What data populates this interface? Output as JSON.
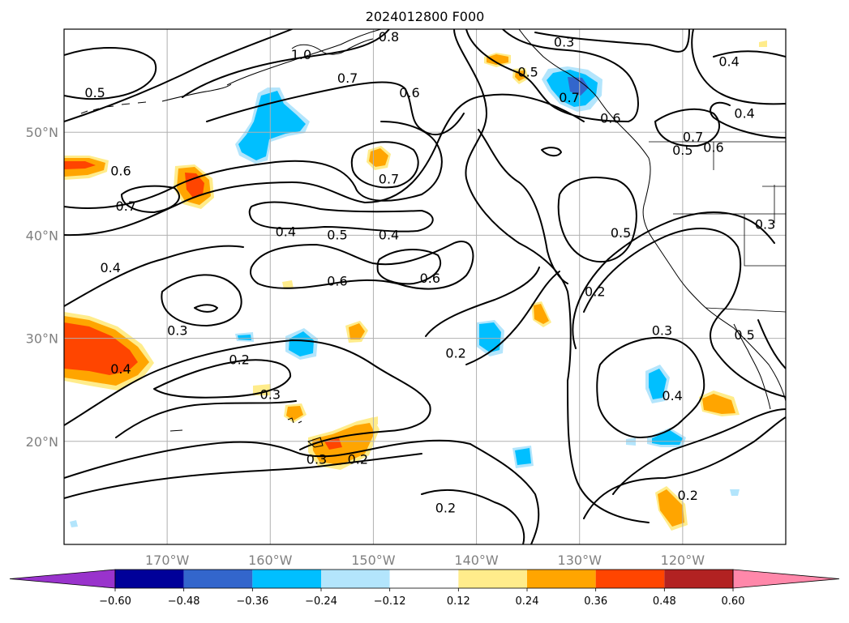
{
  "title": "2024012800 F000",
  "colors": {
    "bin_colors": [
      "#9933cc",
      "#000099",
      "#3366cc",
      "#00bfff",
      "#b3e5fc",
      "#ffffff",
      "#ffec8b",
      "#ffa500",
      "#ff4500",
      "#b22222",
      "#ff88aa"
    ],
    "contour": "#000000",
    "grid": "#b0b0b0",
    "tick_label": "#808080"
  },
  "map": {
    "lon_range": [
      -180,
      -110
    ],
    "lat_range": [
      10,
      60
    ],
    "lon_ticks": [
      {
        "lon": -170,
        "label": "170°W"
      },
      {
        "lon": -160,
        "label": "160°W"
      },
      {
        "lon": -150,
        "label": "150°W"
      },
      {
        "lon": -140,
        "label": "140°W"
      },
      {
        "lon": -130,
        "label": "130°W"
      },
      {
        "lon": -120,
        "label": "120°W"
      }
    ],
    "lat_ticks": [
      {
        "lat": 50,
        "label": "50°N"
      },
      {
        "lat": 40,
        "label": "40°N"
      },
      {
        "lat": 30,
        "label": "30°N"
      },
      {
        "lat": 20,
        "label": "20°N"
      }
    ],
    "grid": true
  },
  "colorbar": {
    "levels": [
      "−0.60",
      "−0.48",
      "−0.36",
      "−0.24",
      "−0.12",
      "0.12",
      "0.24",
      "0.36",
      "0.48",
      "0.60"
    ],
    "extend": "both"
  },
  "contour_labels": [
    {
      "text": "0.8",
      "lon": -148.5,
      "lat": 59.2
    },
    {
      "text": "1.0",
      "lon": -157,
      "lat": 57.5
    },
    {
      "text": "0.7",
      "lon": -152.5,
      "lat": 55.2
    },
    {
      "text": "0.5",
      "lon": -177,
      "lat": 53.8
    },
    {
      "text": "0.6",
      "lon": -146.5,
      "lat": 53.8
    },
    {
      "text": "0.3",
      "lon": -131.5,
      "lat": 58.7
    },
    {
      "text": "0.4",
      "lon": -115.5,
      "lat": 56.8
    },
    {
      "text": "0.5",
      "lon": -135,
      "lat": 55.8
    },
    {
      "text": "0.7",
      "lon": -131,
      "lat": 53.3
    },
    {
      "text": "0.6",
      "lon": -127,
      "lat": 51.3
    },
    {
      "text": "0.4",
      "lon": -114,
      "lat": 51.8
    },
    {
      "text": "0.7",
      "lon": -119,
      "lat": 49.5
    },
    {
      "text": "0.6",
      "lon": -117,
      "lat": 48.5
    },
    {
      "text": "0.5",
      "lon": -120,
      "lat": 48.2
    },
    {
      "text": "0.6",
      "lon": -174.5,
      "lat": 46.2
    },
    {
      "text": "0.7",
      "lon": -148.5,
      "lat": 45.4
    },
    {
      "text": "0.7",
      "lon": -174,
      "lat": 42.8
    },
    {
      "text": "0.4",
      "lon": -158.5,
      "lat": 40.3
    },
    {
      "text": "0.5",
      "lon": -153.5,
      "lat": 40.0
    },
    {
      "text": "0.4",
      "lon": -148.5,
      "lat": 40.0
    },
    {
      "text": "0.5",
      "lon": -126,
      "lat": 40.2
    },
    {
      "text": "0.3",
      "lon": -112,
      "lat": 41.0
    },
    {
      "text": "0.4",
      "lon": -175.5,
      "lat": 36.8
    },
    {
      "text": "0.6",
      "lon": -153.5,
      "lat": 35.5
    },
    {
      "text": "0.6",
      "lon": -144.5,
      "lat": 35.8
    },
    {
      "text": "0.2",
      "lon": -128.5,
      "lat": 34.5
    },
    {
      "text": "0.3",
      "lon": -169,
      "lat": 30.7
    },
    {
      "text": "0.3",
      "lon": -122,
      "lat": 30.7
    },
    {
      "text": "0.5",
      "lon": -114,
      "lat": 30.3
    },
    {
      "text": "0.2",
      "lon": -142,
      "lat": 28.5
    },
    {
      "text": "0.4",
      "lon": -174.5,
      "lat": 27.0
    },
    {
      "text": "0.2",
      "lon": -163,
      "lat": 27.9
    },
    {
      "text": "0.3",
      "lon": -160,
      "lat": 24.5
    },
    {
      "text": "0.4",
      "lon": -121,
      "lat": 24.4
    },
    {
      "text": "0.3",
      "lon": -155.5,
      "lat": 18.2
    },
    {
      "text": "0.2",
      "lon": -151.5,
      "lat": 18.2
    },
    {
      "text": "0.2",
      "lon": -119.5,
      "lat": 14.7
    },
    {
      "text": "0.2",
      "lon": -143,
      "lat": 13.5
    }
  ]
}
